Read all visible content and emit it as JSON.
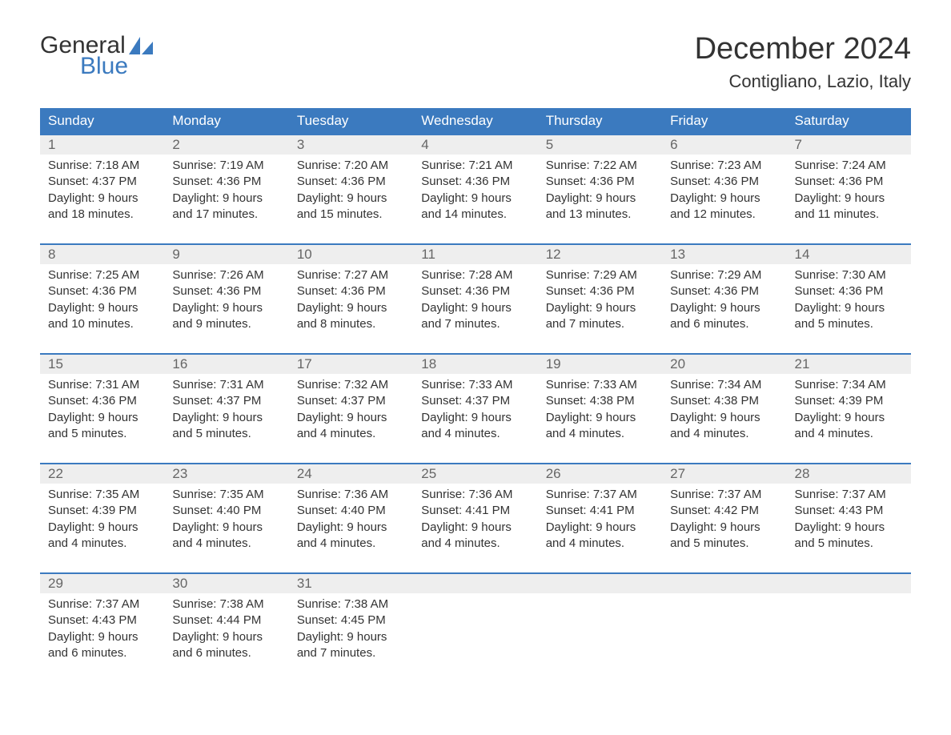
{
  "brand": {
    "word1": "General",
    "word2": "Blue"
  },
  "title": "December 2024",
  "location": "Contigliano, Lazio, Italy",
  "colors": {
    "header_bg": "#3b7abf",
    "header_text": "#ffffff",
    "daynum_bg": "#eeeeee",
    "daynum_text": "#666666",
    "body_text": "#333333",
    "accent": "#3b7abf",
    "page_bg": "#ffffff"
  },
  "layout": {
    "columns": 7,
    "rows": 5,
    "font_family": "Arial",
    "title_fontsize": 38,
    "location_fontsize": 22,
    "header_fontsize": 17,
    "daynum_fontsize": 17,
    "body_fontsize": 15
  },
  "day_headers": [
    "Sunday",
    "Monday",
    "Tuesday",
    "Wednesday",
    "Thursday",
    "Friday",
    "Saturday"
  ],
  "weeks": [
    [
      {
        "n": "1",
        "sr": "Sunrise: 7:18 AM",
        "ss": "Sunset: 4:37 PM",
        "d1": "Daylight: 9 hours",
        "d2": "and 18 minutes."
      },
      {
        "n": "2",
        "sr": "Sunrise: 7:19 AM",
        "ss": "Sunset: 4:36 PM",
        "d1": "Daylight: 9 hours",
        "d2": "and 17 minutes."
      },
      {
        "n": "3",
        "sr": "Sunrise: 7:20 AM",
        "ss": "Sunset: 4:36 PM",
        "d1": "Daylight: 9 hours",
        "d2": "and 15 minutes."
      },
      {
        "n": "4",
        "sr": "Sunrise: 7:21 AM",
        "ss": "Sunset: 4:36 PM",
        "d1": "Daylight: 9 hours",
        "d2": "and 14 minutes."
      },
      {
        "n": "5",
        "sr": "Sunrise: 7:22 AM",
        "ss": "Sunset: 4:36 PM",
        "d1": "Daylight: 9 hours",
        "d2": "and 13 minutes."
      },
      {
        "n": "6",
        "sr": "Sunrise: 7:23 AM",
        "ss": "Sunset: 4:36 PM",
        "d1": "Daylight: 9 hours",
        "d2": "and 12 minutes."
      },
      {
        "n": "7",
        "sr": "Sunrise: 7:24 AM",
        "ss": "Sunset: 4:36 PM",
        "d1": "Daylight: 9 hours",
        "d2": "and 11 minutes."
      }
    ],
    [
      {
        "n": "8",
        "sr": "Sunrise: 7:25 AM",
        "ss": "Sunset: 4:36 PM",
        "d1": "Daylight: 9 hours",
        "d2": "and 10 minutes."
      },
      {
        "n": "9",
        "sr": "Sunrise: 7:26 AM",
        "ss": "Sunset: 4:36 PM",
        "d1": "Daylight: 9 hours",
        "d2": "and 9 minutes."
      },
      {
        "n": "10",
        "sr": "Sunrise: 7:27 AM",
        "ss": "Sunset: 4:36 PM",
        "d1": "Daylight: 9 hours",
        "d2": "and 8 minutes."
      },
      {
        "n": "11",
        "sr": "Sunrise: 7:28 AM",
        "ss": "Sunset: 4:36 PM",
        "d1": "Daylight: 9 hours",
        "d2": "and 7 minutes."
      },
      {
        "n": "12",
        "sr": "Sunrise: 7:29 AM",
        "ss": "Sunset: 4:36 PM",
        "d1": "Daylight: 9 hours",
        "d2": "and 7 minutes."
      },
      {
        "n": "13",
        "sr": "Sunrise: 7:29 AM",
        "ss": "Sunset: 4:36 PM",
        "d1": "Daylight: 9 hours",
        "d2": "and 6 minutes."
      },
      {
        "n": "14",
        "sr": "Sunrise: 7:30 AM",
        "ss": "Sunset: 4:36 PM",
        "d1": "Daylight: 9 hours",
        "d2": "and 5 minutes."
      }
    ],
    [
      {
        "n": "15",
        "sr": "Sunrise: 7:31 AM",
        "ss": "Sunset: 4:36 PM",
        "d1": "Daylight: 9 hours",
        "d2": "and 5 minutes."
      },
      {
        "n": "16",
        "sr": "Sunrise: 7:31 AM",
        "ss": "Sunset: 4:37 PM",
        "d1": "Daylight: 9 hours",
        "d2": "and 5 minutes."
      },
      {
        "n": "17",
        "sr": "Sunrise: 7:32 AM",
        "ss": "Sunset: 4:37 PM",
        "d1": "Daylight: 9 hours",
        "d2": "and 4 minutes."
      },
      {
        "n": "18",
        "sr": "Sunrise: 7:33 AM",
        "ss": "Sunset: 4:37 PM",
        "d1": "Daylight: 9 hours",
        "d2": "and 4 minutes."
      },
      {
        "n": "19",
        "sr": "Sunrise: 7:33 AM",
        "ss": "Sunset: 4:38 PM",
        "d1": "Daylight: 9 hours",
        "d2": "and 4 minutes."
      },
      {
        "n": "20",
        "sr": "Sunrise: 7:34 AM",
        "ss": "Sunset: 4:38 PM",
        "d1": "Daylight: 9 hours",
        "d2": "and 4 minutes."
      },
      {
        "n": "21",
        "sr": "Sunrise: 7:34 AM",
        "ss": "Sunset: 4:39 PM",
        "d1": "Daylight: 9 hours",
        "d2": "and 4 minutes."
      }
    ],
    [
      {
        "n": "22",
        "sr": "Sunrise: 7:35 AM",
        "ss": "Sunset: 4:39 PM",
        "d1": "Daylight: 9 hours",
        "d2": "and 4 minutes."
      },
      {
        "n": "23",
        "sr": "Sunrise: 7:35 AM",
        "ss": "Sunset: 4:40 PM",
        "d1": "Daylight: 9 hours",
        "d2": "and 4 minutes."
      },
      {
        "n": "24",
        "sr": "Sunrise: 7:36 AM",
        "ss": "Sunset: 4:40 PM",
        "d1": "Daylight: 9 hours",
        "d2": "and 4 minutes."
      },
      {
        "n": "25",
        "sr": "Sunrise: 7:36 AM",
        "ss": "Sunset: 4:41 PM",
        "d1": "Daylight: 9 hours",
        "d2": "and 4 minutes."
      },
      {
        "n": "26",
        "sr": "Sunrise: 7:37 AM",
        "ss": "Sunset: 4:41 PM",
        "d1": "Daylight: 9 hours",
        "d2": "and 4 minutes."
      },
      {
        "n": "27",
        "sr": "Sunrise: 7:37 AM",
        "ss": "Sunset: 4:42 PM",
        "d1": "Daylight: 9 hours",
        "d2": "and 5 minutes."
      },
      {
        "n": "28",
        "sr": "Sunrise: 7:37 AM",
        "ss": "Sunset: 4:43 PM",
        "d1": "Daylight: 9 hours",
        "d2": "and 5 minutes."
      }
    ],
    [
      {
        "n": "29",
        "sr": "Sunrise: 7:37 AM",
        "ss": "Sunset: 4:43 PM",
        "d1": "Daylight: 9 hours",
        "d2": "and 6 minutes."
      },
      {
        "n": "30",
        "sr": "Sunrise: 7:38 AM",
        "ss": "Sunset: 4:44 PM",
        "d1": "Daylight: 9 hours",
        "d2": "and 6 minutes."
      },
      {
        "n": "31",
        "sr": "Sunrise: 7:38 AM",
        "ss": "Sunset: 4:45 PM",
        "d1": "Daylight: 9 hours",
        "d2": "and 7 minutes."
      },
      {
        "empty": true
      },
      {
        "empty": true
      },
      {
        "empty": true
      },
      {
        "empty": true
      }
    ]
  ]
}
